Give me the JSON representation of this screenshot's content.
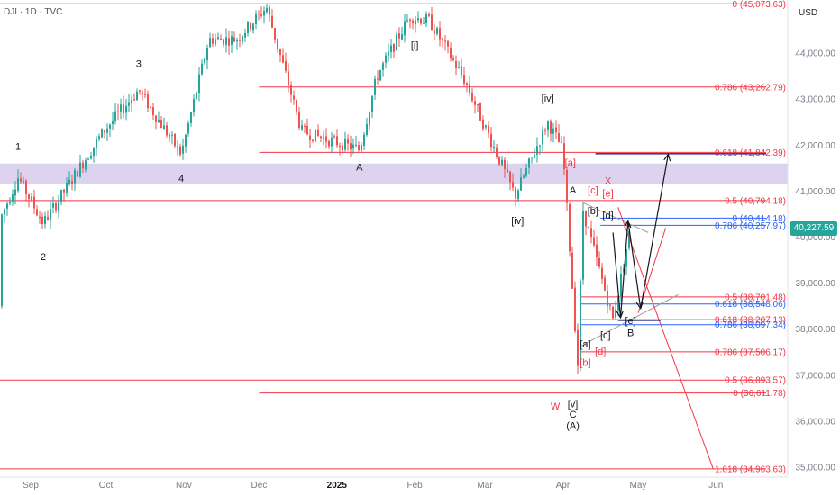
{
  "header": {
    "symbol": "DJI · 1D · TVC",
    "currency": "USD"
  },
  "last_price": {
    "label": "40,227.59",
    "value": 40227.59,
    "color": "#26a69a"
  },
  "colors": {
    "up": "#26a69a",
    "down": "#ef5350",
    "fib": "#f23645",
    "fib_blue": "#2962ff",
    "zone": "#b39ddb",
    "dark_line": "#3f3f8f",
    "grid_text": "#787b86"
  },
  "chart_data": {
    "type": "candlestick",
    "ylim": [
      34800,
      45300
    ],
    "y_ticks": [
      {
        "value": 44000,
        "label": "44,000.00"
      },
      {
        "value": 43000,
        "label": "43,000.00"
      },
      {
        "value": 42000,
        "label": "42,000.00"
      },
      {
        "value": 41000,
        "label": "41,000.00"
      },
      {
        "value": 40000,
        "label": "40,000.00"
      },
      {
        "value": 39000,
        "label": "39,000.00"
      },
      {
        "value": 38000,
        "label": "38,000.00"
      },
      {
        "value": 37000,
        "label": "37,000.00"
      },
      {
        "value": 36000,
        "label": "36,000.00"
      },
      {
        "value": 35000,
        "label": "35,000.00"
      }
    ],
    "x_ticks": [
      {
        "label": "Sep",
        "date": "2024-09-01"
      },
      {
        "label": "Oct",
        "date": "2024-10-01"
      },
      {
        "label": "Nov",
        "date": "2024-11-01"
      },
      {
        "label": "Dec",
        "date": "2024-12-01"
      },
      {
        "label": "2025",
        "date": "2025-01-01",
        "bold": true
      },
      {
        "label": "Feb",
        "date": "2025-02-01"
      },
      {
        "label": "Mar",
        "date": "2025-03-01"
      },
      {
        "label": "Apr",
        "date": "2025-04-01"
      },
      {
        "label": "May",
        "date": "2025-05-01"
      },
      {
        "label": "Jun",
        "date": "2025-06-01"
      }
    ],
    "anchors": [
      {
        "date": "2024-08-05",
        "price": 38500
      },
      {
        "date": "2024-08-27",
        "price": 41300
      },
      {
        "date": "2024-09-06",
        "price": 40300
      },
      {
        "date": "2024-09-30",
        "price": 42300
      },
      {
        "date": "2024-10-14",
        "price": 43200
      },
      {
        "date": "2024-10-31",
        "price": 41800
      },
      {
        "date": "2024-11-11",
        "price": 44300
      },
      {
        "date": "2024-11-22",
        "price": 44300
      },
      {
        "date": "2024-12-04",
        "price": 45000
      },
      {
        "date": "2024-12-18",
        "price": 42300
      },
      {
        "date": "2025-01-10",
        "price": 41900
      },
      {
        "date": "2025-01-17",
        "price": 43500
      },
      {
        "date": "2025-01-30",
        "price": 44800
      },
      {
        "date": "2025-02-07",
        "price": 44700
      },
      {
        "date": "2025-02-21",
        "price": 43400
      },
      {
        "date": "2025-03-13",
        "price": 40900
      },
      {
        "date": "2025-03-26",
        "price": 42500
      },
      {
        "date": "2025-04-01",
        "price": 41900
      },
      {
        "date": "2025-04-07",
        "price": 37200
      },
      {
        "date": "2025-04-09",
        "price": 40600
      },
      {
        "date": "2025-04-21",
        "price": 38200
      },
      {
        "date": "2025-04-28",
        "price": 40227.59
      }
    ],
    "support_zone": {
      "from": 41150,
      "to": 41600
    },
    "price_levels": [
      {
        "price": 45073.63,
        "label": "0 (45,073.63)",
        "start": "2024-08-01",
        "color": "#f23645"
      },
      {
        "price": 43262.79,
        "label": "0.786 (43,262.79)",
        "start": "2024-12-01",
        "color": "#f23645"
      },
      {
        "price": 41842.39,
        "label": "0.618 (41,842.39)",
        "start": "2024-12-01",
        "color": "#f23645"
      },
      {
        "price": 41812.99,
        "label": "",
        "start": "2025-04-14",
        "color": "#3f3f8f"
      },
      {
        "price": 40794.18,
        "label": "0.5 (40,794.18)",
        "start": "2024-08-01",
        "color": "#f23645"
      },
      {
        "price": 40414.18,
        "label": "0 (40,414.18)",
        "start": "2025-04-16",
        "color": "#2962ff"
      },
      {
        "price": 40257.97,
        "label": "0.786 (40,257.97)",
        "start": "2025-04-16",
        "color": "#2962ff"
      },
      {
        "price": 38701.48,
        "label": "0.5 (38,701.48)",
        "start": "2025-04-08",
        "color": "#f23645"
      },
      {
        "price": 38548.06,
        "label": "0.618 (38,548.06)",
        "start": "2025-04-08",
        "color": "#2962ff"
      },
      {
        "price": 38207.13,
        "label": "0.618 (38,207.13)",
        "start": "2025-04-08",
        "color": "#f23645"
      },
      {
        "price": 38097.34,
        "label": "0.786 (38,097.34)",
        "start": "2025-04-08",
        "color": "#2962ff"
      },
      {
        "price": 37506.17,
        "label": "0.786 (37,506.17)",
        "start": "2025-04-08",
        "color": "#f23645"
      },
      {
        "price": 36893.57,
        "label": "0.5 (36,893.57)",
        "start": "2024-08-01",
        "color": "#f23645"
      },
      {
        "price": 36611.78,
        "label": "0 (36,611.78)",
        "start": "2024-12-01",
        "color": "#f23645"
      },
      {
        "price": 34963.63,
        "label": "1.618 (34,963.63)",
        "start": "2024-08-01",
        "color": "#f23645"
      }
    ],
    "wave_labels": [
      {
        "text": "1",
        "date": "2024-08-27",
        "price": 41900,
        "color": "#131722"
      },
      {
        "text": "2",
        "date": "2024-09-06",
        "price": 39500,
        "color": "#131722"
      },
      {
        "text": "3",
        "date": "2024-10-14",
        "price": 43700,
        "color": "#131722"
      },
      {
        "text": "4",
        "date": "2024-10-31",
        "price": 41200,
        "color": "#131722"
      },
      {
        "text": "[i]",
        "date": "2025-02-01",
        "price": 44100,
        "color": "#131722"
      },
      {
        "text": "A",
        "date": "2025-01-10",
        "price": 41450,
        "color": "#131722"
      },
      {
        "text": "[iv]",
        "date": "2025-03-26",
        "price": 42950,
        "color": "#131722"
      },
      {
        "text": "[iv]",
        "date": "2025-03-14",
        "price": 40280,
        "color": "#131722"
      },
      {
        "text": "[a]",
        "date": "2025-04-04",
        "price": 41550,
        "color": "#f23645"
      },
      {
        "text": "A",
        "date": "2025-04-05",
        "price": 40950,
        "color": "#131722"
      },
      {
        "text": "[c]",
        "date": "2025-04-13",
        "price": 40950,
        "color": "#f23645"
      },
      {
        "text": "X",
        "date": "2025-04-19",
        "price": 41150,
        "color": "#f23645"
      },
      {
        "text": "[e]",
        "date": "2025-04-19",
        "price": 40880,
        "color": "#f23645"
      },
      {
        "text": "[b]",
        "date": "2025-04-13",
        "price": 40500,
        "color": "#131722"
      },
      {
        "text": "[d]",
        "date": "2025-04-19",
        "price": 40400,
        "color": "#131722"
      },
      {
        "text": "[c]",
        "date": "2025-04-18",
        "price": 37800,
        "color": "#131722"
      },
      {
        "text": "[e]",
        "date": "2025-04-28",
        "price": 38110,
        "color": "#131722"
      },
      {
        "text": "B",
        "date": "2025-04-28",
        "price": 37850,
        "color": "#131722"
      },
      {
        "text": "[a]",
        "date": "2025-04-10",
        "price": 37600,
        "color": "#131722"
      },
      {
        "text": "[d]",
        "date": "2025-04-16",
        "price": 37450,
        "color": "#f23645"
      },
      {
        "text": "[b]",
        "date": "2025-04-10",
        "price": 37200,
        "color": "#f23645"
      },
      {
        "text": "W",
        "date": "2025-03-29",
        "price": 36250,
        "color": "#f23645"
      },
      {
        "text": "[v]",
        "date": "2025-04-05",
        "price": 36300,
        "color": "#131722"
      },
      {
        "text": "C",
        "date": "2025-04-05",
        "price": 36080,
        "color": "#131722"
      },
      {
        "text": "(A)",
        "date": "2025-04-05",
        "price": 35830,
        "color": "#131722"
      }
    ],
    "projection_arrows": [
      {
        "from": {
          "date": "2025-04-21",
          "price": 40100
        },
        "to": {
          "date": "2025-04-24",
          "price": 38250
        }
      },
      {
        "from": {
          "date": "2025-04-24",
          "price": 38250
        },
        "to": {
          "date": "2025-04-27",
          "price": 40350
        }
      },
      {
        "from": {
          "date": "2025-04-27",
          "price": 40350
        },
        "to": {
          "date": "2025-05-02",
          "price": 38450
        }
      },
      {
        "from": {
          "date": "2025-05-02",
          "price": 38450
        },
        "to": {
          "date": "2025-05-13",
          "price": 41800
        }
      }
    ],
    "trend_lines": [
      {
        "from": {
          "date": "2025-04-07",
          "price": 37600
        },
        "to": {
          "date": "2025-05-17",
          "price": 38750
        },
        "color": "#9e9e9e"
      },
      {
        "from": {
          "date": "2025-04-09",
          "price": 40750
        },
        "to": {
          "date": "2025-05-05",
          "price": 40100
        },
        "color": "#9e9e9e"
      },
      {
        "from": {
          "date": "2025-05-01",
          "price": 38350
        },
        "to": {
          "date": "2025-05-12",
          "price": 40200
        },
        "color": "#f23645"
      },
      {
        "from": {
          "date": "2025-04-23",
          "price": 40650
        },
        "to": {
          "date": "2025-05-31",
          "price": 34950
        },
        "color": "#f23645"
      },
      {
        "from": {
          "date": "2025-04-23",
          "price": 38190
        },
        "to": {
          "date": "2025-05-10",
          "price": 38190
        },
        "color": "#3f3f8f"
      }
    ]
  }
}
